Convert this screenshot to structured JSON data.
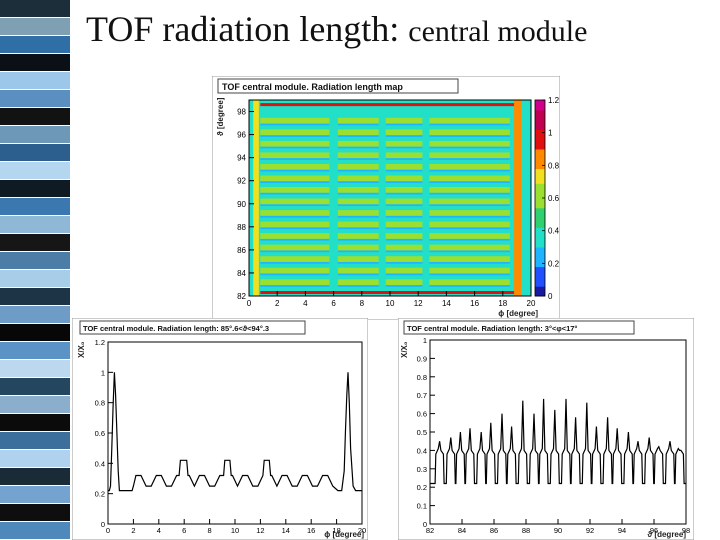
{
  "slide": {
    "title_main": "TOF radiation length:",
    "title_sub": "central module",
    "stripe_colors": [
      "#1c2e3a",
      "#7f9fb2",
      "#2f6fa6",
      "#0a1016",
      "#9cc6ea",
      "#5a8fc0",
      "#121212",
      "#6d98b8",
      "#2c5f8e",
      "#b5d6f0",
      "#0f1a22",
      "#3b78b0",
      "#8fb7d6",
      "#161616",
      "#4c7da7",
      "#a7cde9",
      "#1d3346",
      "#6f9cc6",
      "#070707",
      "#5b93c7",
      "#bcd8ee",
      "#24465f",
      "#8aaecb",
      "#0b0b0b",
      "#3d6f9c",
      "#b0d2ee",
      "#1a2a36",
      "#74a3cf",
      "#0e0e0e",
      "#4f88bb"
    ]
  },
  "chart_data": [
    {
      "type": "heatmap",
      "title": "TOF central module. Radiation length map",
      "xlabel": "ϕ [degree]",
      "ylabel": "ϑ [degree]",
      "xlim": [
        0,
        20
      ],
      "ylim": [
        82,
        99
      ],
      "x_ticks": [
        0,
        2,
        4,
        6,
        8,
        10,
        12,
        14,
        16,
        18,
        20
      ],
      "y_ticks": [
        82,
        84,
        86,
        88,
        90,
        92,
        94,
        96,
        98
      ],
      "zlim": [
        0,
        1.2
      ],
      "z_ticks": [
        0,
        0.2,
        0.4,
        0.6,
        0.8,
        1,
        1.2
      ],
      "colormap": [
        "#1a1aa0",
        "#2050ff",
        "#1fb4ff",
        "#22e0c8",
        "#30d070",
        "#9be030",
        "#f0e020",
        "#ff8a00",
        "#e01010",
        "#c00050",
        "#d0008a"
      ],
      "vertical_bars": [
        {
          "x_start": 0.3,
          "x_end": 0.7,
          "value": 0.75
        },
        {
          "x_start": 5.7,
          "x_end": 6.3,
          "value": 0.4
        },
        {
          "x_start": 9.2,
          "x_end": 9.7,
          "value": 0.4
        },
        {
          "x_start": 12.3,
          "x_end": 12.8,
          "value": 0.4
        },
        {
          "x_start": 18.8,
          "x_end": 19.3,
          "value": 0.8
        }
      ],
      "horizontal_stripe_centers": [
        83.2,
        84.2,
        85.2,
        86.2,
        87.2,
        88.2,
        89.2,
        90.2,
        91.2,
        92.2,
        93.2,
        94.2,
        95.2,
        96.2,
        97.2
      ],
      "edge_rows": [
        82.3,
        98.6
      ]
    },
    {
      "type": "line",
      "title": "TOF central module. Radiation length: 85°.6<ϑ<94°.3",
      "xlabel": "ϕ [degree]",
      "ylabel": "X/X₀",
      "xlim": [
        0,
        20
      ],
      "ylim": [
        0,
        1.2
      ],
      "x_ticks": [
        0,
        2,
        4,
        6,
        8,
        10,
        12,
        14,
        16,
        18,
        20
      ],
      "y_ticks": [
        0,
        0.2,
        0.4,
        0.6,
        0.8,
        1,
        1.2
      ],
      "x": [
        0,
        0.1,
        0.2,
        0.3,
        0.4,
        0.5,
        0.6,
        0.7,
        0.8,
        0.9,
        1.0,
        1.2,
        1.5,
        1.9,
        2.0,
        2.2,
        2.6,
        3.0,
        3.4,
        3.8,
        4.2,
        4.6,
        5.0,
        5.4,
        5.6,
        5.7,
        5.8,
        6.2,
        6.3,
        6.4,
        6.8,
        7.2,
        7.6,
        8.0,
        8.4,
        8.8,
        9.1,
        9.2,
        9.3,
        9.6,
        9.7,
        9.8,
        10.2,
        10.6,
        11.0,
        11.4,
        11.8,
        12.2,
        12.3,
        12.4,
        12.7,
        12.8,
        12.9,
        13.3,
        13.7,
        14.1,
        14.5,
        14.9,
        15.3,
        15.7,
        16.1,
        16.5,
        16.9,
        17.3,
        17.7,
        18.1,
        18.4,
        18.6,
        18.7,
        18.8,
        18.9,
        19.0,
        19.1,
        19.3,
        19.5,
        19.7,
        20.0
      ],
      "y": [
        0.22,
        0.22,
        0.25,
        0.5,
        0.78,
        1.0,
        0.85,
        0.6,
        0.35,
        0.22,
        0.22,
        0.22,
        0.22,
        0.22,
        0.25,
        0.32,
        0.32,
        0.25,
        0.25,
        0.32,
        0.32,
        0.25,
        0.25,
        0.32,
        0.32,
        0.42,
        0.42,
        0.42,
        0.32,
        0.32,
        0.25,
        0.32,
        0.32,
        0.25,
        0.25,
        0.32,
        0.32,
        0.42,
        0.42,
        0.42,
        0.32,
        0.32,
        0.25,
        0.32,
        0.32,
        0.25,
        0.25,
        0.32,
        0.42,
        0.42,
        0.42,
        0.32,
        0.32,
        0.25,
        0.32,
        0.32,
        0.25,
        0.25,
        0.32,
        0.32,
        0.25,
        0.25,
        0.32,
        0.32,
        0.25,
        0.22,
        0.22,
        0.35,
        0.62,
        0.85,
        1.0,
        0.8,
        0.5,
        0.25,
        0.22,
        0.22,
        0.22
      ]
    },
    {
      "type": "line",
      "title": "TOF central module. Radiation length: 3°<φ<17°",
      "xlabel": "ϑ [degree]",
      "ylabel": "X/X₀",
      "xlim": [
        82,
        98
      ],
      "ylim": [
        0,
        1
      ],
      "x_ticks": [
        82,
        84,
        86,
        88,
        90,
        92,
        94,
        96,
        98
      ],
      "y_ticks": [
        0,
        0.1,
        0.2,
        0.3,
        0.4,
        0.5,
        0.6,
        0.7,
        0.8,
        0.9,
        1
      ],
      "peaks": [
        {
          "x": 82.6,
          "y": 0.45
        },
        {
          "x": 83.3,
          "y": 0.47
        },
        {
          "x": 83.9,
          "y": 0.5
        },
        {
          "x": 84.5,
          "y": 0.52
        },
        {
          "x": 85.2,
          "y": 0.5
        },
        {
          "x": 85.8,
          "y": 0.55
        },
        {
          "x": 86.5,
          "y": 0.6
        },
        {
          "x": 87.1,
          "y": 0.53
        },
        {
          "x": 87.8,
          "y": 0.67
        },
        {
          "x": 88.5,
          "y": 0.6
        },
        {
          "x": 89.1,
          "y": 0.68
        },
        {
          "x": 89.8,
          "y": 0.62
        },
        {
          "x": 90.5,
          "y": 0.68
        },
        {
          "x": 91.1,
          "y": 0.58
        },
        {
          "x": 91.8,
          "y": 0.66
        },
        {
          "x": 92.4,
          "y": 0.53
        },
        {
          "x": 93.1,
          "y": 0.58
        },
        {
          "x": 93.7,
          "y": 0.52
        },
        {
          "x": 94.4,
          "y": 0.5
        },
        {
          "x": 95.0,
          "y": 0.45
        },
        {
          "x": 95.7,
          "y": 0.47
        },
        {
          "x": 96.3,
          "y": 0.42
        },
        {
          "x": 97.0,
          "y": 0.45
        },
        {
          "x": 97.6,
          "y": 0.4
        }
      ],
      "baseline": 0.22,
      "plateau": 0.38
    }
  ]
}
